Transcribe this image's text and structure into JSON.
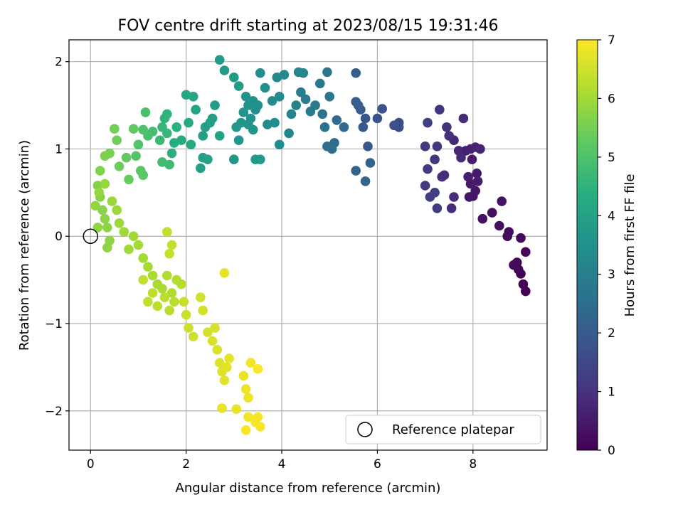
{
  "chart_data": {
    "type": "scatter",
    "title": "FOV centre drift starting at 2023/08/15 19:31:46",
    "xlabel": "Angular distance from reference (arcmin)",
    "ylabel": "Rotation from reference (arcmin)",
    "xlim": [
      -0.45,
      9.55
    ],
    "ylim": [
      -2.45,
      2.25
    ],
    "xticks": [
      0,
      2,
      4,
      6,
      8
    ],
    "yticks": [
      -2,
      -1,
      0,
      1,
      2
    ],
    "grid": true,
    "colormap": "viridis",
    "colorbar": {
      "label": "Hours from first FF file",
      "range": [
        0,
        7
      ],
      "ticks": [
        0,
        1,
        2,
        3,
        4,
        5,
        6,
        7
      ]
    },
    "legend": {
      "position": "lower-right",
      "entries": [
        "Reference platepar"
      ]
    },
    "reference_point": {
      "x": 0,
      "y": 0
    },
    "points": [
      [
        9.1,
        -0.63,
        0.02
      ],
      [
        9.05,
        -0.55,
        0.04
      ],
      [
        9.0,
        -0.43,
        0.06
      ],
      [
        8.92,
        -0.3,
        0.08
      ],
      [
        8.95,
        -0.38,
        0.1
      ],
      [
        9.1,
        -0.18,
        0.12
      ],
      [
        9.0,
        -0.02,
        0.15
      ],
      [
        8.85,
        -0.33,
        0.17
      ],
      [
        8.72,
        0.0,
        0.2
      ],
      [
        8.75,
        0.05,
        0.22
      ],
      [
        8.55,
        0.12,
        0.25
      ],
      [
        8.4,
        0.27,
        0.28
      ],
      [
        8.6,
        0.4,
        0.31
      ],
      [
        8.2,
        0.2,
        0.34
      ],
      [
        8.0,
        0.46,
        0.38
      ],
      [
        7.92,
        0.45,
        0.41
      ],
      [
        8.05,
        0.52,
        0.44
      ],
      [
        7.95,
        0.6,
        0.47
      ],
      [
        8.08,
        0.72,
        0.5
      ],
      [
        7.98,
        0.88,
        0.53
      ],
      [
        8.1,
        0.63,
        0.56
      ],
      [
        7.9,
        0.68,
        0.59
      ],
      [
        7.85,
        0.98,
        0.62
      ],
      [
        7.95,
        1.0,
        0.65
      ],
      [
        8.15,
        1.0,
        0.68
      ],
      [
        8.05,
        1.02,
        0.71
      ],
      [
        7.7,
        0.98,
        0.74
      ],
      [
        7.6,
        1.1,
        0.77
      ],
      [
        7.75,
        0.9,
        0.8
      ],
      [
        7.8,
        1.35,
        0.83
      ],
      [
        7.6,
        0.45,
        0.86
      ],
      [
        7.55,
        0.32,
        0.89
      ],
      [
        7.4,
        0.7,
        0.92
      ],
      [
        7.35,
        0.68,
        0.95
      ],
      [
        7.5,
        1.15,
        0.98
      ],
      [
        7.45,
        1.25,
        1.01
      ],
      [
        7.3,
        1.45,
        1.04
      ],
      [
        7.2,
        0.88,
        1.07
      ],
      [
        7.25,
        1.03,
        1.1
      ],
      [
        7.0,
        1.03,
        1.13
      ],
      [
        7.05,
        0.77,
        1.16
      ],
      [
        7.0,
        0.58,
        1.19
      ],
      [
        7.1,
        0.45,
        1.22
      ],
      [
        7.25,
        0.32,
        1.25
      ],
      [
        7.05,
        1.3,
        1.28
      ],
      [
        7.2,
        0.5,
        1.31
      ],
      [
        6.45,
        1.3,
        1.6
      ],
      [
        6.45,
        1.25,
        1.65
      ],
      [
        6.35,
        1.27,
        1.7
      ],
      [
        6.1,
        1.46,
        1.75
      ],
      [
        6.0,
        1.35,
        1.8
      ],
      [
        5.75,
        1.35,
        1.85
      ],
      [
        5.8,
        1.03,
        1.9
      ],
      [
        5.7,
        1.25,
        1.95
      ],
      [
        5.65,
        1.45,
        2.0
      ],
      [
        5.6,
        1.5,
        2.05
      ],
      [
        5.55,
        1.54,
        2.1
      ],
      [
        5.55,
        1.87,
        2.15
      ],
      [
        5.85,
        0.84,
        2.2
      ],
      [
        5.55,
        0.75,
        2.25
      ],
      [
        5.75,
        0.63,
        2.3
      ],
      [
        5.3,
        1.25,
        2.35
      ],
      [
        5.1,
        1.07,
        2.4
      ],
      [
        5.15,
        1.33,
        2.45
      ],
      [
        4.95,
        1.03,
        2.5
      ],
      [
        5.05,
        1.0,
        2.55
      ],
      [
        4.9,
        1.25,
        2.6
      ],
      [
        4.85,
        1.4,
        2.65
      ],
      [
        5.0,
        1.6,
        2.7
      ],
      [
        4.95,
        1.88,
        2.75
      ],
      [
        4.8,
        1.75,
        2.8
      ],
      [
        4.7,
        1.5,
        2.85
      ],
      [
        4.6,
        1.43,
        2.9
      ],
      [
        4.5,
        1.57,
        2.95
      ],
      [
        4.4,
        1.65,
        3.0
      ],
      [
        4.3,
        1.5,
        3.05
      ],
      [
        4.2,
        1.4,
        3.1
      ],
      [
        4.15,
        1.18,
        3.15
      ],
      [
        4.45,
        1.87,
        3.2
      ],
      [
        4.35,
        1.88,
        3.22
      ],
      [
        4.05,
        1.85,
        3.25
      ],
      [
        3.9,
        1.82,
        3.28
      ],
      [
        3.95,
        1.6,
        3.3
      ],
      [
        3.8,
        1.55,
        3.32
      ],
      [
        3.85,
        1.3,
        3.35
      ],
      [
        3.7,
        1.28,
        3.38
      ],
      [
        3.95,
        1.05,
        3.4
      ],
      [
        3.55,
        1.87,
        3.42
      ],
      [
        3.65,
        1.7,
        3.44
      ],
      [
        3.5,
        1.5,
        3.46
      ],
      [
        3.45,
        1.45,
        3.48
      ],
      [
        3.4,
        1.55,
        3.5
      ],
      [
        3.35,
        1.35,
        3.52
      ],
      [
        3.3,
        1.5,
        3.54
      ],
      [
        3.25,
        1.6,
        3.56
      ],
      [
        3.2,
        1.42,
        3.58
      ],
      [
        3.3,
        1.28,
        3.6
      ],
      [
        3.4,
        1.22,
        3.62
      ],
      [
        3.15,
        1.3,
        3.64
      ],
      [
        3.1,
        1.1,
        3.66
      ],
      [
        3.05,
        1.25,
        3.68
      ],
      [
        3.0,
        0.88,
        3.7
      ],
      [
        3.45,
        0.88,
        3.72
      ],
      [
        3.55,
        0.88,
        3.74
      ],
      [
        3.1,
        1.72,
        3.76
      ],
      [
        3.0,
        1.82,
        3.78
      ],
      [
        2.8,
        1.9,
        3.8
      ],
      [
        2.7,
        2.02,
        3.82
      ],
      [
        2.6,
        1.5,
        3.84
      ],
      [
        2.55,
        1.35,
        3.86
      ],
      [
        2.5,
        1.3,
        3.88
      ],
      [
        2.4,
        1.25,
        3.9
      ],
      [
        2.35,
        1.15,
        3.92
      ],
      [
        2.3,
        0.78,
        3.94
      ],
      [
        2.35,
        0.9,
        3.96
      ],
      [
        2.45,
        0.88,
        3.98
      ],
      [
        2.7,
        1.15,
        4.0
      ],
      [
        2.2,
        1.45,
        4.05
      ],
      [
        2.15,
        1.6,
        4.1
      ],
      [
        2.0,
        1.62,
        4.15
      ],
      [
        2.05,
        1.3,
        4.2
      ],
      [
        2.1,
        1.05,
        4.25
      ],
      [
        1.9,
        1.1,
        4.3
      ],
      [
        1.75,
        1.07,
        4.35
      ],
      [
        1.8,
        1.25,
        4.4
      ],
      [
        1.7,
        0.95,
        4.45
      ],
      [
        1.6,
        1.4,
        4.5
      ],
      [
        1.55,
        1.35,
        4.55
      ],
      [
        1.5,
        1.25,
        4.6
      ],
      [
        1.6,
        1.18,
        4.65
      ],
      [
        1.45,
        1.1,
        4.7
      ],
      [
        1.65,
        0.82,
        4.75
      ],
      [
        1.5,
        0.85,
        4.8
      ],
      [
        1.3,
        1.2,
        4.85
      ],
      [
        1.2,
        1.15,
        4.9
      ],
      [
        1.15,
        1.42,
        4.95
      ],
      [
        1.1,
        1.22,
        5.0
      ],
      [
        1.0,
        1.05,
        5.05
      ],
      [
        0.95,
        0.92,
        5.1
      ],
      [
        1.05,
        0.75,
        5.15
      ],
      [
        1.1,
        0.7,
        5.2
      ],
      [
        0.9,
        1.23,
        5.25
      ],
      [
        0.75,
        0.9,
        5.3
      ],
      [
        0.8,
        0.65,
        5.35
      ],
      [
        0.6,
        0.8,
        5.4
      ],
      [
        0.55,
        1.1,
        5.45
      ],
      [
        0.5,
        1.23,
        5.5
      ],
      [
        0.4,
        0.95,
        5.55
      ],
      [
        0.3,
        0.92,
        5.6
      ],
      [
        0.2,
        0.75,
        5.65
      ],
      [
        0.15,
        0.58,
        5.68
      ],
      [
        0.2,
        0.45,
        5.7
      ],
      [
        0.25,
        0.3,
        5.72
      ],
      [
        0.3,
        0.2,
        5.74
      ],
      [
        0.35,
        0.1,
        5.76
      ],
      [
        0.4,
        -0.05,
        5.78
      ],
      [
        0.35,
        -0.13,
        5.8
      ],
      [
        0.15,
        0.1,
        5.82
      ],
      [
        0.1,
        0.35,
        5.84
      ],
      [
        0.18,
        0.5,
        5.86
      ],
      [
        0.3,
        0.6,
        5.88
      ],
      [
        0.45,
        0.4,
        5.9
      ],
      [
        0.55,
        0.3,
        5.92
      ],
      [
        0.6,
        0.15,
        5.94
      ],
      [
        0.7,
        0.05,
        5.96
      ],
      [
        0.8,
        -0.15,
        5.98
      ],
      [
        0.9,
        0.0,
        6.0
      ],
      [
        1.0,
        -0.1,
        6.02
      ],
      [
        1.1,
        -0.25,
        6.04
      ],
      [
        1.2,
        -0.35,
        6.06
      ],
      [
        1.3,
        -0.45,
        6.08
      ],
      [
        1.4,
        -0.55,
        6.1
      ],
      [
        1.5,
        -0.6,
        6.12
      ],
      [
        1.6,
        -0.45,
        6.14
      ],
      [
        1.7,
        -0.65,
        6.16
      ],
      [
        1.8,
        -0.5,
        6.18
      ],
      [
        1.9,
        -0.55,
        6.2
      ],
      [
        1.75,
        -0.75,
        6.22
      ],
      [
        1.65,
        -0.85,
        6.24
      ],
      [
        1.55,
        -0.7,
        6.26
      ],
      [
        1.4,
        -0.8,
        6.28
      ],
      [
        1.3,
        -0.65,
        6.3
      ],
      [
        1.2,
        -0.75,
        6.32
      ],
      [
        1.1,
        -0.5,
        6.34
      ],
      [
        1.6,
        0.05,
        6.36
      ],
      [
        1.7,
        -0.1,
        6.38
      ],
      [
        1.65,
        -0.2,
        6.4
      ],
      [
        1.95,
        -0.75,
        6.42
      ],
      [
        2.0,
        -0.9,
        6.44
      ],
      [
        2.05,
        -1.05,
        6.46
      ],
      [
        2.15,
        -1.15,
        6.5
      ],
      [
        2.3,
        -0.7,
        6.52
      ],
      [
        2.35,
        -0.85,
        6.54
      ],
      [
        2.45,
        -1.1,
        6.56
      ],
      [
        2.55,
        -1.2,
        6.58
      ],
      [
        2.6,
        -1.05,
        6.6
      ],
      [
        2.65,
        -1.3,
        6.62
      ],
      [
        2.7,
        -1.45,
        6.64
      ],
      [
        2.75,
        -1.55,
        6.66
      ],
      [
        2.8,
        -1.65,
        6.68
      ],
      [
        2.85,
        -1.5,
        6.7
      ],
      [
        2.9,
        -1.4,
        6.72
      ],
      [
        2.75,
        -1.97,
        6.74
      ],
      [
        2.8,
        -0.42,
        6.76
      ],
      [
        3.05,
        -1.98,
        6.78
      ],
      [
        3.2,
        -1.6,
        6.8
      ],
      [
        3.25,
        -1.75,
        6.82
      ],
      [
        3.3,
        -1.85,
        6.84
      ],
      [
        3.35,
        -1.45,
        6.86
      ],
      [
        3.3,
        -2.07,
        6.88
      ],
      [
        3.45,
        -2.13,
        6.9
      ],
      [
        3.5,
        -2.07,
        6.92
      ],
      [
        3.55,
        -2.18,
        6.94
      ],
      [
        3.25,
        -2.22,
        6.96
      ],
      [
        3.5,
        -1.52,
        6.98
      ]
    ]
  }
}
